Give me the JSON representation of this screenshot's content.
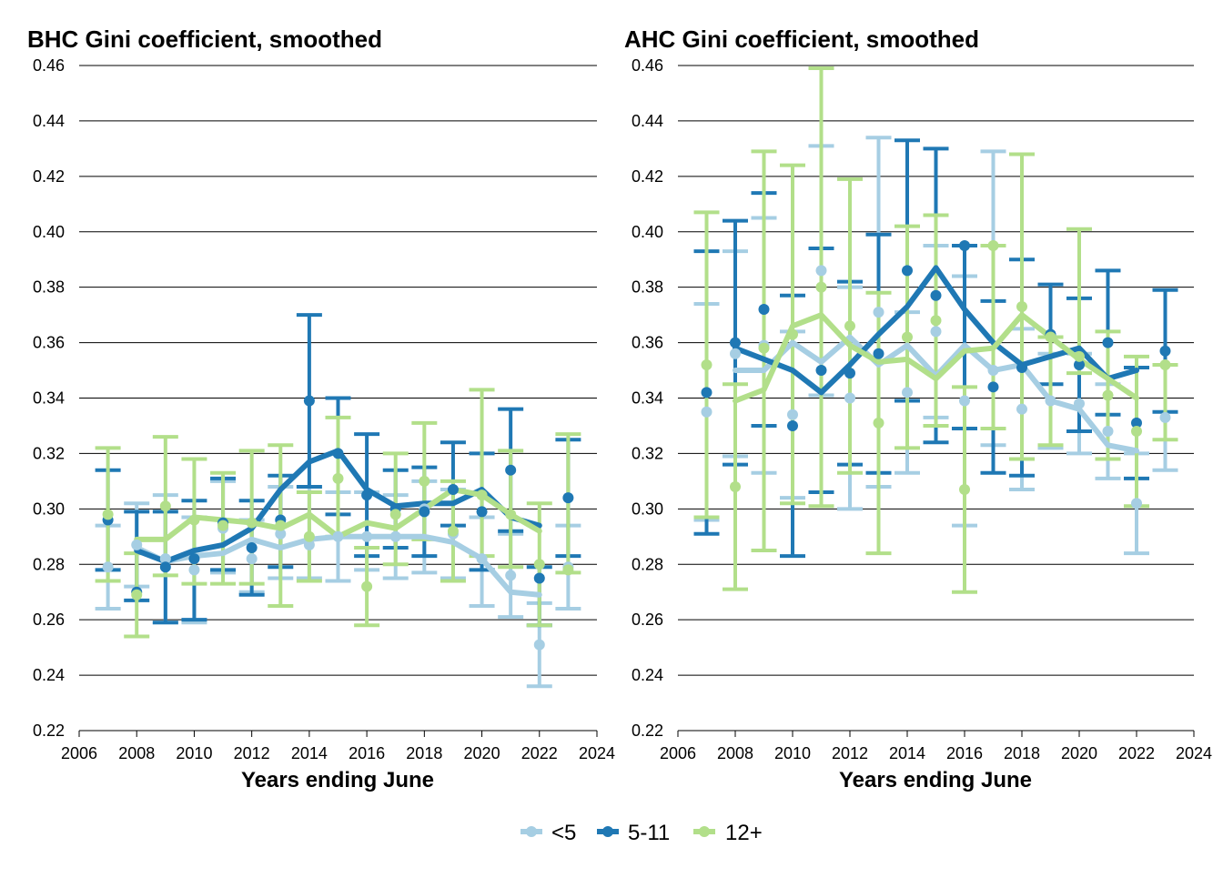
{
  "colors": {
    "lt5": "#a6cee3",
    "5to11": "#1f78b4",
    "12plus": "#b2df8a"
  },
  "legend": [
    {
      "key": "lt5",
      "label": "<5"
    },
    {
      "key": "5to11",
      "label": "5-11"
    },
    {
      "key": "12plus",
      "label": "12+"
    }
  ],
  "chart_data": [
    {
      "type": "line",
      "title": "BHC Gini coefficient, smoothed",
      "xlabel": "Years ending June",
      "ylabel": "",
      "xlim": [
        2006,
        2024
      ],
      "ylim": [
        0.22,
        0.46
      ],
      "xticks": [
        "2006",
        "2008",
        "2010",
        "2012",
        "2014",
        "2016",
        "2018",
        "2020",
        "2022",
        "2024"
      ],
      "yticks": [
        "0.22",
        "0.24",
        "0.26",
        "0.28",
        "0.30",
        "0.32",
        "0.34",
        "0.36",
        "0.38",
        "0.40",
        "0.42",
        "0.44",
        "0.46"
      ],
      "grid": true,
      "series": [
        {
          "name": "<5",
          "key": "lt5",
          "x": [
            2007,
            2008,
            2009,
            2010,
            2011,
            2012,
            2013,
            2014,
            2015,
            2016,
            2017,
            2018,
            2019,
            2020,
            2021,
            2022,
            2023
          ],
          "points": [
            0.279,
            0.287,
            0.282,
            0.278,
            0.293,
            0.282,
            0.291,
            0.287,
            0.29,
            0.29,
            0.29,
            0.3,
            0.291,
            0.282,
            0.276,
            0.251,
            0.279
          ],
          "lower": [
            0.264,
            0.272,
            0.259,
            0.259,
            0.277,
            0.27,
            0.275,
            0.275,
            0.274,
            0.278,
            0.275,
            0.277,
            0.275,
            0.265,
            0.261,
            0.236,
            0.264
          ],
          "upper": [
            0.294,
            0.302,
            0.305,
            0.297,
            0.31,
            0.296,
            0.308,
            0.308,
            0.306,
            0.306,
            0.305,
            0.31,
            0.307,
            0.297,
            0.291,
            0.266,
            0.294
          ],
          "trend_x": [
            2008,
            2009,
            2010,
            2011,
            2012,
            2013,
            2014,
            2015,
            2016,
            2017,
            2018,
            2019,
            2020,
            2021,
            2022
          ],
          "trend": [
            0.286,
            0.281,
            0.283,
            0.284,
            0.289,
            0.286,
            0.289,
            0.29,
            0.29,
            0.29,
            0.29,
            0.288,
            0.282,
            0.27,
            0.269
          ]
        },
        {
          "name": "5-11",
          "key": "5to11",
          "x": [
            2007,
            2008,
            2009,
            2010,
            2011,
            2012,
            2013,
            2014,
            2015,
            2016,
            2017,
            2018,
            2019,
            2020,
            2021,
            2022,
            2023
          ],
          "points": [
            0.296,
            0.27,
            0.279,
            0.282,
            0.295,
            0.286,
            0.296,
            0.339,
            0.32,
            0.305,
            0.3,
            0.299,
            0.307,
            0.299,
            0.314,
            0.275,
            0.304
          ],
          "lower": [
            0.278,
            0.267,
            0.259,
            0.26,
            0.278,
            0.269,
            0.279,
            0.308,
            0.298,
            0.283,
            0.286,
            0.283,
            0.294,
            0.278,
            0.292,
            0.258,
            0.283
          ],
          "upper": [
            0.314,
            0.299,
            0.299,
            0.303,
            0.311,
            0.303,
            0.312,
            0.37,
            0.34,
            0.327,
            0.314,
            0.315,
            0.324,
            0.32,
            0.336,
            0.279,
            0.325
          ],
          "trend_x": [
            2008,
            2009,
            2010,
            2011,
            2012,
            2013,
            2014,
            2015,
            2016,
            2017,
            2018,
            2019,
            2020,
            2021,
            2022
          ],
          "trend": [
            0.285,
            0.281,
            0.285,
            0.287,
            0.293,
            0.307,
            0.317,
            0.321,
            0.307,
            0.301,
            0.302,
            0.302,
            0.307,
            0.297,
            0.294
          ]
        },
        {
          "name": "12+",
          "key": "12plus",
          "x": [
            2007,
            2008,
            2009,
            2010,
            2011,
            2012,
            2013,
            2014,
            2015,
            2016,
            2017,
            2018,
            2019,
            2020,
            2021,
            2022,
            2023
          ],
          "points": [
            0.298,
            0.269,
            0.301,
            0.296,
            0.294,
            0.295,
            0.294,
            0.29,
            0.311,
            0.272,
            0.298,
            0.31,
            0.292,
            0.305,
            0.298,
            0.28,
            0.278
          ],
          "lower": [
            0.274,
            0.254,
            0.276,
            0.273,
            0.273,
            0.273,
            0.265,
            0.274,
            0.29,
            0.258,
            0.28,
            0.289,
            0.274,
            0.283,
            0.279,
            0.258,
            0.277
          ],
          "upper": [
            0.322,
            0.284,
            0.326,
            0.318,
            0.313,
            0.321,
            0.323,
            0.306,
            0.333,
            0.286,
            0.32,
            0.331,
            0.31,
            0.343,
            0.321,
            0.302,
            0.327
          ],
          "trend_x": [
            2008,
            2009,
            2010,
            2011,
            2012,
            2013,
            2014,
            2015,
            2016,
            2017,
            2018,
            2019,
            2020,
            2021,
            2022
          ],
          "trend": [
            0.289,
            0.289,
            0.297,
            0.296,
            0.295,
            0.293,
            0.298,
            0.29,
            0.295,
            0.293,
            0.3,
            0.307,
            0.305,
            0.298,
            0.292
          ]
        }
      ]
    },
    {
      "type": "line",
      "title": "AHC Gini coefficient, smoothed",
      "xlabel": "Years ending June",
      "ylabel": "",
      "xlim": [
        2006,
        2024
      ],
      "ylim": [
        0.22,
        0.46
      ],
      "xticks": [
        "2006",
        "2008",
        "2010",
        "2012",
        "2014",
        "2016",
        "2018",
        "2020",
        "2022",
        "2024"
      ],
      "yticks": [
        "0.22",
        "0.24",
        "0.26",
        "0.28",
        "0.30",
        "0.32",
        "0.34",
        "0.36",
        "0.38",
        "0.40",
        "0.42",
        "0.44",
        "0.46"
      ],
      "grid": true,
      "series": [
        {
          "name": "<5",
          "key": "lt5",
          "x": [
            2007,
            2008,
            2009,
            2010,
            2011,
            2012,
            2013,
            2014,
            2015,
            2016,
            2017,
            2018,
            2019,
            2020,
            2021,
            2022,
            2023
          ],
          "points": [
            0.335,
            0.356,
            0.359,
            0.334,
            0.386,
            0.34,
            0.371,
            0.342,
            0.364,
            0.339,
            0.35,
            0.336,
            0.339,
            0.338,
            0.328,
            0.302,
            0.333
          ],
          "lower": [
            0.296,
            0.319,
            0.313,
            0.304,
            0.341,
            0.3,
            0.308,
            0.313,
            0.333,
            0.294,
            0.323,
            0.307,
            0.322,
            0.32,
            0.311,
            0.284,
            0.314
          ],
          "upper": [
            0.374,
            0.393,
            0.405,
            0.364,
            0.431,
            0.38,
            0.434,
            0.371,
            0.395,
            0.384,
            0.429,
            0.365,
            0.356,
            0.356,
            0.345,
            0.32,
            0.352
          ],
          "trend_x": [
            2008,
            2009,
            2010,
            2011,
            2012,
            2013,
            2014,
            2015,
            2016,
            2017,
            2018,
            2019,
            2020,
            2021,
            2022
          ],
          "trend": [
            0.35,
            0.35,
            0.36,
            0.353,
            0.362,
            0.352,
            0.359,
            0.348,
            0.359,
            0.35,
            0.352,
            0.339,
            0.336,
            0.323,
            0.321
          ]
        },
        {
          "name": "5-11",
          "key": "5to11",
          "x": [
            2007,
            2008,
            2009,
            2010,
            2011,
            2012,
            2013,
            2014,
            2015,
            2016,
            2017,
            2018,
            2019,
            2020,
            2021,
            2022,
            2023
          ],
          "points": [
            0.342,
            0.36,
            0.372,
            0.33,
            0.35,
            0.349,
            0.356,
            0.386,
            0.377,
            0.395,
            0.344,
            0.351,
            0.363,
            0.352,
            0.36,
            0.331,
            0.357
          ],
          "lower": [
            0.291,
            0.316,
            0.33,
            0.283,
            0.306,
            0.316,
            0.313,
            0.339,
            0.324,
            0.329,
            0.313,
            0.312,
            0.345,
            0.328,
            0.334,
            0.311,
            0.335
          ],
          "upper": [
            0.393,
            0.404,
            0.414,
            0.377,
            0.394,
            0.382,
            0.399,
            0.433,
            0.43,
            0.395,
            0.375,
            0.39,
            0.381,
            0.376,
            0.386,
            0.351,
            0.379
          ],
          "trend_x": [
            2008,
            2009,
            2010,
            2011,
            2012,
            2013,
            2014,
            2015,
            2016,
            2017,
            2018,
            2019,
            2020,
            2021,
            2022
          ],
          "trend": [
            0.358,
            0.354,
            0.35,
            0.342,
            0.352,
            0.363,
            0.373,
            0.387,
            0.372,
            0.36,
            0.352,
            0.355,
            0.358,
            0.347,
            0.35
          ]
        },
        {
          "name": "12+",
          "key": "12plus",
          "x": [
            2007,
            2008,
            2009,
            2010,
            2011,
            2012,
            2013,
            2014,
            2015,
            2016,
            2017,
            2018,
            2019,
            2020,
            2021,
            2022,
            2023
          ],
          "points": [
            0.352,
            0.308,
            0.358,
            0.363,
            0.38,
            0.366,
            0.331,
            0.362,
            0.368,
            0.307,
            0.395,
            0.373,
            0.362,
            0.355,
            0.341,
            0.328,
            0.352
          ],
          "lower": [
            0.297,
            0.271,
            0.285,
            0.302,
            0.301,
            0.313,
            0.284,
            0.322,
            0.33,
            0.27,
            0.329,
            0.318,
            0.323,
            0.349,
            0.318,
            0.301,
            0.325
          ],
          "upper": [
            0.407,
            0.345,
            0.429,
            0.424,
            0.459,
            0.419,
            0.378,
            0.402,
            0.406,
            0.344,
            0.395,
            0.428,
            0.362,
            0.401,
            0.364,
            0.355,
            0.352
          ],
          "trend_x": [
            2008,
            2009,
            2010,
            2011,
            2012,
            2013,
            2014,
            2015,
            2016,
            2017,
            2018,
            2019,
            2020,
            2021,
            2022
          ],
          "trend": [
            0.339,
            0.343,
            0.366,
            0.37,
            0.359,
            0.353,
            0.354,
            0.347,
            0.357,
            0.358,
            0.37,
            0.362,
            0.354,
            0.347,
            0.34
          ]
        }
      ]
    }
  ]
}
